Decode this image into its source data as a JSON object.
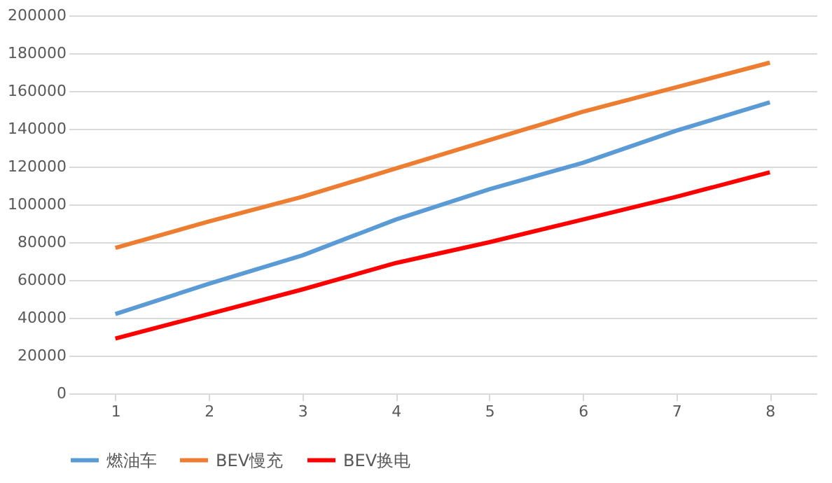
{
  "chart_data": {
    "type": "line",
    "categories": [
      "1",
      "2",
      "3",
      "4",
      "5",
      "6",
      "7",
      "8"
    ],
    "series": [
      {
        "name": "燃油车",
        "color": "#5b9bd5",
        "values": [
          42000,
          58000,
          73000,
          92000,
          108000,
          122000,
          139000,
          154000
        ]
      },
      {
        "name": "BEV慢充",
        "color": "#ed7d31",
        "values": [
          77000,
          91000,
          104000,
          119000,
          134000,
          149000,
          162000,
          175000
        ]
      },
      {
        "name": "BEV换电",
        "color": "#ff0000",
        "values": [
          29000,
          42000,
          55000,
          69000,
          80000,
          92000,
          104000,
          117000
        ]
      }
    ],
    "ylim": [
      0,
      200000
    ],
    "yticks": [
      0,
      20000,
      40000,
      60000,
      80000,
      100000,
      120000,
      140000,
      160000,
      180000,
      200000
    ],
    "grid": "y",
    "legend": "bottom",
    "marker": "none",
    "line_style": "solid"
  }
}
